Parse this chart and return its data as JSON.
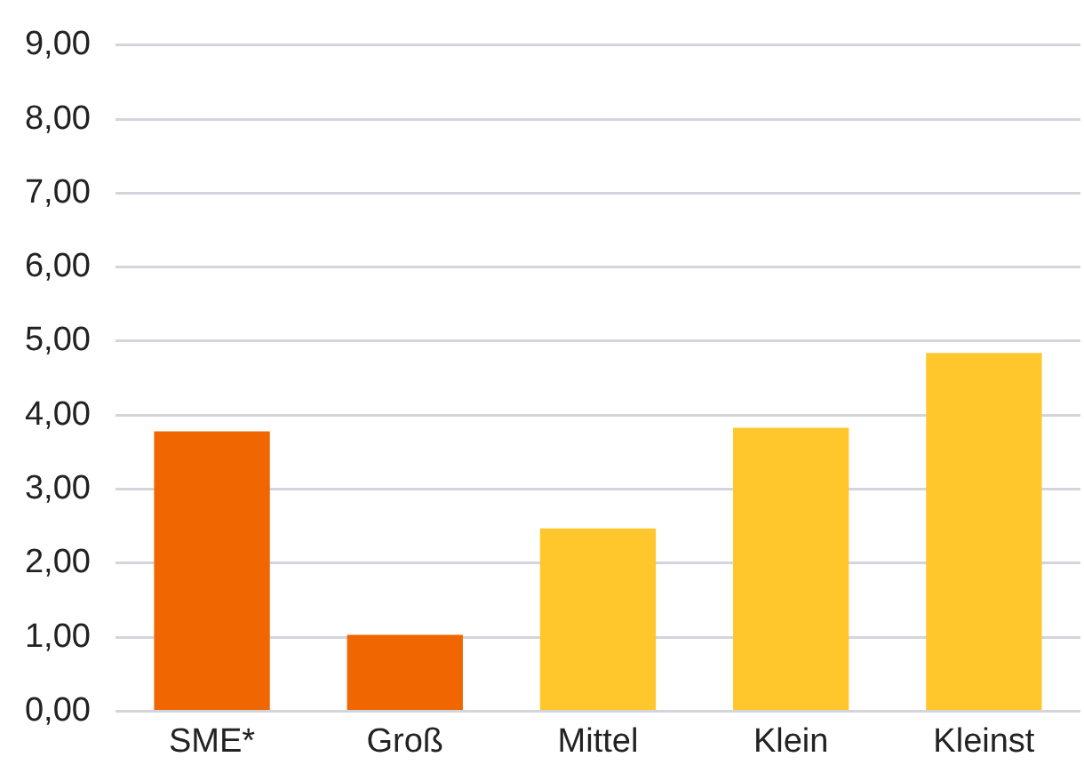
{
  "chart_data": {
    "type": "bar",
    "categories": [
      "SME*",
      "Groß",
      "Mittel",
      "Klein",
      "Kleinst"
    ],
    "values": [
      3.78,
      1.03,
      2.47,
      3.83,
      4.84
    ],
    "colors": [
      "#f06600",
      "#f06600",
      "#ffc72c",
      "#ffc72c",
      "#ffc72c"
    ],
    "ylim": [
      0,
      9
    ],
    "yticks": [
      {
        "value": 0,
        "label": "0,00"
      },
      {
        "value": 1,
        "label": "1,00"
      },
      {
        "value": 2,
        "label": "2,00"
      },
      {
        "value": 3,
        "label": "3,00"
      },
      {
        "value": 4,
        "label": "4,00"
      },
      {
        "value": 5,
        "label": "5,00"
      },
      {
        "value": 6,
        "label": "6,00"
      },
      {
        "value": 7,
        "label": "7,00"
      },
      {
        "value": 8,
        "label": "8,00"
      },
      {
        "value": 9,
        "label": "9,00"
      }
    ],
    "grid": "y"
  }
}
